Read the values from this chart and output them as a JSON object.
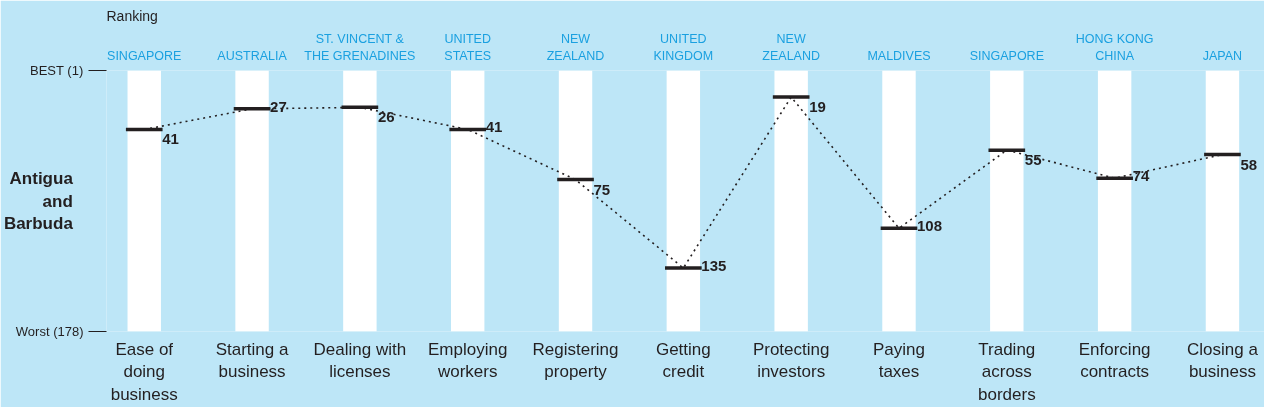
{
  "chart_data": {
    "type": "line",
    "ylabel": "Ranking",
    "categories": [
      "Ease of\ndoing\nbusiness",
      "Starting a\nbusiness",
      "Dealing with\nlicenses",
      "Employing\nworkers",
      "Registering\nproperty",
      "Getting\ncredit",
      "Protecting\ninvestors",
      "Paying\ntaxes",
      "Trading\nacross\nborders",
      "Enforcing\ncontracts",
      "Closing a\nbusiness"
    ],
    "ylim": [
      178,
      1
    ],
    "yticks": [
      {
        "value": 1,
        "label": "BEST (1)"
      },
      {
        "value": 178,
        "label": "Worst (178)"
      }
    ],
    "series": [
      {
        "type": "bar",
        "color": "#ffffff",
        "base": [
          178,
          178,
          178,
          178,
          178,
          178,
          178,
          178,
          178,
          178,
          178
        ],
        "values": [
          -177,
          -177,
          -177,
          -177,
          -177,
          -177,
          -177,
          -177,
          -177,
          -177,
          -177
        ]
      },
      {
        "name": "Antigua\nand\nBarbuda",
        "color": "#231f20",
        "values": [
          41,
          27,
          26,
          41,
          75,
          135,
          19,
          108,
          55,
          74,
          58
        ],
        "data_labels": true
      }
    ],
    "line_style": "dotted",
    "legend": "left",
    "annotations": [
      "SINGAPORE",
      "AUSTRALIA",
      "ST. VINCENT &\nTHE GRENADINES",
      "UNITED\nSTATES",
      "NEW\nZEALAND",
      "UNITED\nKINGDOM",
      "NEW\nZEALAND",
      "MALDIVES",
      "SINGAPORE",
      "HONG KONG\nCHINA",
      "JAPAN"
    ]
  }
}
